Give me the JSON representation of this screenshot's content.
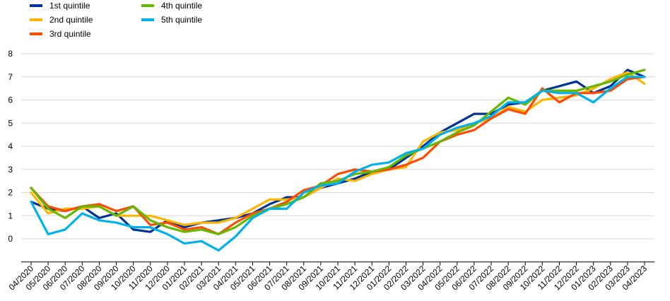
{
  "chart_data": {
    "type": "line",
    "title": "",
    "xlabel": "",
    "ylabel": "",
    "ylim": [
      0,
      8
    ],
    "yticks": [
      0,
      1,
      2,
      3,
      4,
      5,
      6,
      7,
      8
    ],
    "grid": "horizontal",
    "legend_position": "top-left",
    "categories": [
      "04/2020",
      "05/2020",
      "06/2020",
      "07/2020",
      "08/2020",
      "09/2020",
      "10/2020",
      "11/2020",
      "12/2020",
      "01/2021",
      "02/2021",
      "03/2021",
      "04/2021",
      "05/2021",
      "06/2021",
      "07/2021",
      "08/2021",
      "09/2021",
      "10/2021",
      "11/2021",
      "12/2021",
      "01/2022",
      "02/2022",
      "03/2022",
      "04/2022",
      "05/2022",
      "06/2022",
      "07/2022",
      "08/2022",
      "09/2022",
      "10/2022",
      "11/2022",
      "12/2022",
      "01/2023",
      "02/2023",
      "03/2023",
      "04/2023"
    ],
    "series": [
      {
        "name": "1st quintile",
        "color": "#003299",
        "values": [
          1.6,
          1.3,
          1.2,
          1.4,
          0.9,
          1.1,
          0.4,
          0.3,
          0.8,
          0.5,
          0.7,
          0.8,
          0.9,
          1.1,
          1.5,
          1.8,
          1.8,
          2.2,
          2.4,
          2.6,
          2.9,
          3.0,
          3.5,
          4.0,
          4.6,
          5.0,
          5.4,
          5.4,
          5.8,
          5.9,
          6.4,
          6.6,
          6.8,
          6.3,
          6.6,
          7.3,
          7.0
        ]
      },
      {
        "name": "2nd quintile",
        "color": "#FFB400",
        "values": [
          2.0,
          1.1,
          1.3,
          1.3,
          1.4,
          1.0,
          1.0,
          1.0,
          0.8,
          0.6,
          0.7,
          0.7,
          0.9,
          1.3,
          1.7,
          1.7,
          1.8,
          2.2,
          2.6,
          2.5,
          2.8,
          3.0,
          3.1,
          4.2,
          4.6,
          4.7,
          5.0,
          5.2,
          5.7,
          5.5,
          6.0,
          6.1,
          6.2,
          6.5,
          6.9,
          7.2,
          6.7
        ]
      },
      {
        "name": "3rd quintile",
        "color": "#FF4B00",
        "values": [
          2.2,
          1.4,
          1.2,
          1.4,
          1.5,
          1.2,
          1.4,
          0.6,
          0.7,
          0.4,
          0.5,
          0.2,
          0.7,
          1.1,
          1.3,
          1.6,
          2.1,
          2.3,
          2.8,
          3.0,
          2.9,
          3.0,
          3.2,
          3.5,
          4.2,
          4.5,
          4.7,
          5.2,
          5.6,
          5.4,
          6.5,
          5.9,
          6.3,
          6.3,
          6.4,
          6.9,
          7.0
        ]
      },
      {
        "name": "4th quintile",
        "color": "#65B800",
        "values": [
          2.2,
          1.3,
          0.9,
          1.4,
          1.4,
          1.0,
          1.4,
          0.8,
          0.5,
          0.3,
          0.4,
          0.2,
          0.5,
          1.0,
          1.3,
          1.5,
          1.8,
          2.4,
          2.5,
          2.8,
          2.9,
          3.1,
          3.6,
          3.9,
          4.2,
          4.6,
          4.9,
          5.5,
          6.1,
          5.8,
          6.4,
          6.4,
          6.4,
          6.6,
          6.8,
          7.1,
          7.3
        ]
      },
      {
        "name": "5th quintile",
        "color": "#00B1EA",
        "values": [
          1.6,
          0.2,
          0.4,
          1.1,
          0.8,
          0.7,
          0.5,
          0.5,
          0.2,
          -0.2,
          -0.1,
          -0.5,
          0.1,
          0.9,
          1.3,
          1.3,
          2.0,
          2.3,
          2.4,
          2.9,
          3.2,
          3.3,
          3.7,
          3.9,
          4.5,
          4.8,
          5.0,
          5.3,
          5.9,
          5.9,
          6.4,
          6.3,
          6.3,
          5.9,
          6.5,
          7.0,
          7.0
        ]
      }
    ]
  }
}
